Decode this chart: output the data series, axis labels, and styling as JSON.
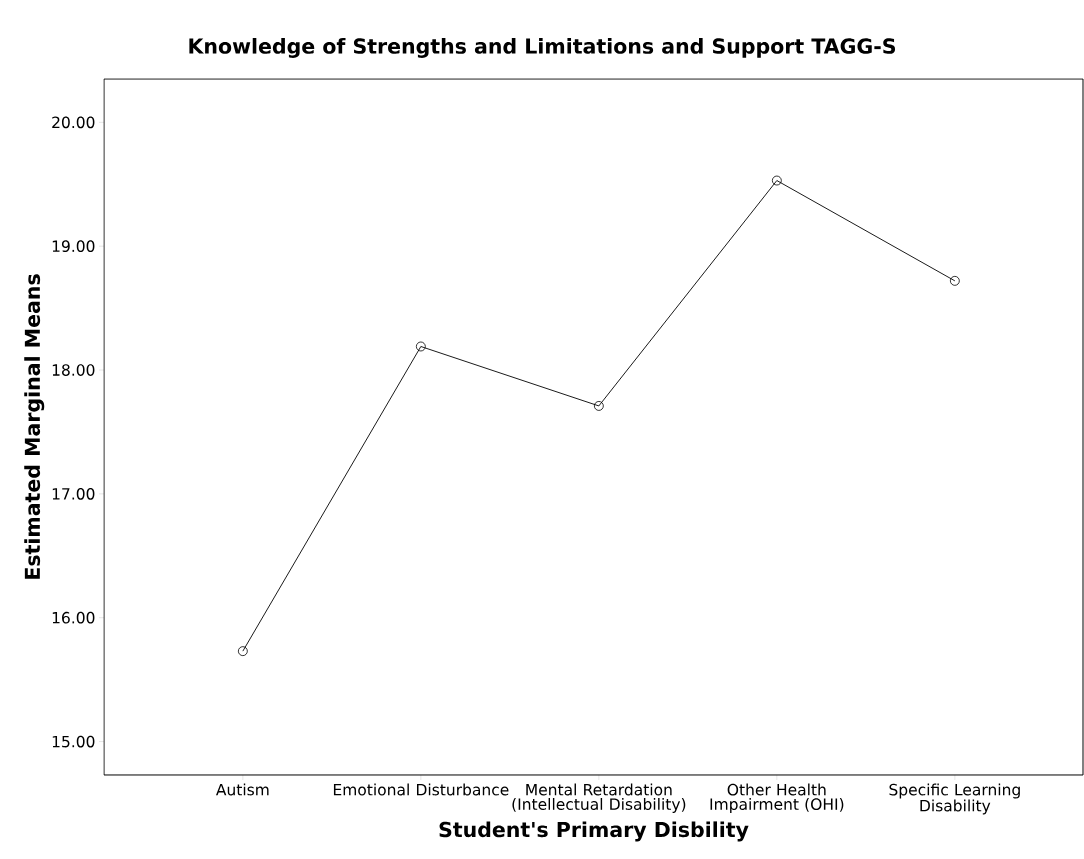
{
  "chart_data": {
    "type": "line",
    "title": "Knowledge of Strengths and Limitations and Support TAGG-S",
    "xlabel": "Student's Primary Disbility",
    "ylabel": "Estimated Marginal Means",
    "categories": [
      "Autism",
      "Emotional Disturbance",
      "Mental Retardation (Intellectual Disability)",
      "Other Health Impairment (OHI)",
      "Specific Learning Disability"
    ],
    "values": [
      15.73,
      18.19,
      17.71,
      19.53,
      18.72
    ],
    "color": "#000000",
    "marker": "circle",
    "line_style": "solid",
    "grid": false,
    "ylim": [
      14.73,
      20.35
    ],
    "yticks": [
      {
        "value": 15,
        "label": "15.00"
      },
      {
        "value": 16,
        "label": "16.00"
      },
      {
        "value": 17,
        "label": "17.00"
      },
      {
        "value": 18,
        "label": "18.00"
      },
      {
        "value": 19,
        "label": "19.00"
      },
      {
        "value": 20,
        "label": "20.00"
      }
    ]
  }
}
